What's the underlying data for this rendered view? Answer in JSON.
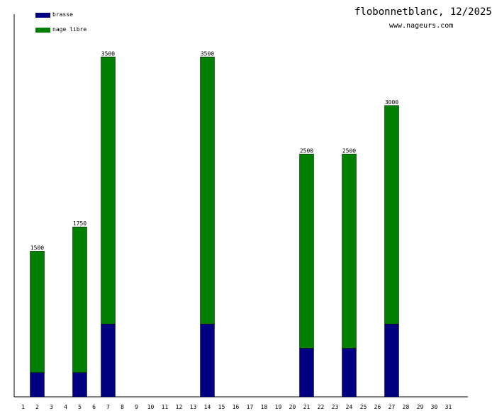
{
  "header": {
    "title": "flobonnetblanc, 12/2025",
    "site": "www.nageurs.com"
  },
  "colors": {
    "brasse": "#000080",
    "nage_libre": "#008000",
    "axis": "#000000"
  },
  "chart_data": {
    "type": "bar",
    "stacked": true,
    "categories": [
      "1",
      "2",
      "3",
      "4",
      "5",
      "6",
      "7",
      "8",
      "9",
      "10",
      "11",
      "12",
      "13",
      "14",
      "15",
      "16",
      "17",
      "18",
      "19",
      "20",
      "21",
      "22",
      "23",
      "24",
      "25",
      "26",
      "27",
      "28",
      "29",
      "30",
      "31"
    ],
    "series": [
      {
        "name": "brasse",
        "values": [
          0,
          250,
          0,
          0,
          250,
          0,
          750,
          0,
          0,
          0,
          0,
          0,
          0,
          750,
          0,
          0,
          0,
          0,
          0,
          0,
          500,
          0,
          0,
          500,
          0,
          0,
          750,
          0,
          0,
          0,
          0
        ]
      },
      {
        "name": "nage libre",
        "values": [
          0,
          1250,
          0,
          0,
          1500,
          0,
          2750,
          0,
          0,
          0,
          0,
          0,
          0,
          2750,
          0,
          0,
          0,
          0,
          0,
          0,
          2000,
          0,
          0,
          2000,
          0,
          0,
          2250,
          0,
          0,
          0,
          0
        ]
      }
    ],
    "totals": [
      null,
      "1500",
      null,
      null,
      "1750",
      null,
      "3500",
      null,
      null,
      null,
      null,
      null,
      null,
      "3500",
      null,
      null,
      null,
      null,
      null,
      null,
      "2500",
      null,
      null,
      "2500",
      null,
      null,
      "3000",
      null,
      null,
      null,
      null
    ],
    "ylim": [
      0,
      3940
    ],
    "legend_position": "top-left",
    "grid": false
  }
}
